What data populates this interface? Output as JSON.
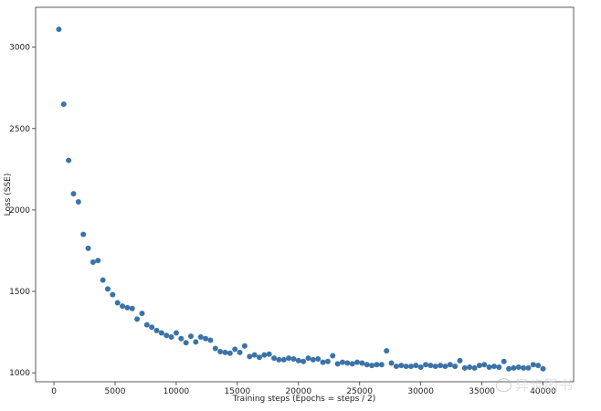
{
  "chart_data": {
    "type": "scatter",
    "title": "",
    "xlabel": "Training steps (Epochs = steps / 2)",
    "ylabel": "Loss (SSE)",
    "xlim": [
      -1500,
      42500
    ],
    "ylim": [
      945,
      3245
    ],
    "xticks": [
      0,
      5000,
      10000,
      15000,
      20000,
      25000,
      30000,
      35000,
      40000
    ],
    "xtick_labels": [
      "0",
      "5000",
      "10000",
      "15000",
      "20000",
      "25000",
      "30000",
      "35000",
      "40000"
    ],
    "yticks": [
      1000,
      1500,
      2000,
      2500,
      3000
    ],
    "ytick_labels": [
      "1000",
      "1500",
      "2000",
      "2500",
      "3000"
    ],
    "grid": false,
    "marker_color": "#3b73a8",
    "x": [
      400,
      800,
      1200,
      1600,
      2000,
      2400,
      2800,
      3200,
      3600,
      4000,
      4400,
      4800,
      5200,
      5600,
      6000,
      6400,
      6800,
      7200,
      7600,
      8000,
      8400,
      8800,
      9200,
      9600,
      10000,
      10400,
      10800,
      11200,
      11600,
      12000,
      12400,
      12800,
      13200,
      13600,
      14000,
      14400,
      14800,
      15200,
      15600,
      16000,
      16400,
      16800,
      17200,
      17600,
      18000,
      18400,
      18800,
      19200,
      19600,
      20000,
      20400,
      20800,
      21200,
      21600,
      22000,
      22400,
      22800,
      23200,
      23600,
      24000,
      24400,
      24800,
      25200,
      25600,
      26000,
      26400,
      26800,
      27200,
      27600,
      28000,
      28400,
      28800,
      29200,
      29600,
      30000,
      30400,
      30800,
      31200,
      31600,
      32000,
      32400,
      32800,
      33200,
      33600,
      34000,
      34400,
      34800,
      35200,
      35600,
      36000,
      36400,
      36800,
      37200,
      37600,
      38000,
      38400,
      38800,
      39200,
      39600,
      40000
    ],
    "y": [
      3110,
      2650,
      2305,
      2100,
      2050,
      1850,
      1765,
      1680,
      1690,
      1570,
      1515,
      1480,
      1430,
      1410,
      1400,
      1395,
      1330,
      1365,
      1295,
      1280,
      1260,
      1245,
      1230,
      1220,
      1245,
      1210,
      1185,
      1225,
      1190,
      1220,
      1210,
      1200,
      1150,
      1130,
      1125,
      1120,
      1145,
      1125,
      1165,
      1100,
      1110,
      1095,
      1110,
      1115,
      1090,
      1080,
      1080,
      1090,
      1085,
      1075,
      1070,
      1090,
      1080,
      1085,
      1065,
      1070,
      1105,
      1055,
      1065,
      1060,
      1055,
      1065,
      1060,
      1050,
      1045,
      1050,
      1050,
      1135,
      1060,
      1040,
      1045,
      1040,
      1040,
      1045,
      1035,
      1050,
      1045,
      1040,
      1045,
      1040,
      1050,
      1040,
      1075,
      1030,
      1035,
      1030,
      1045,
      1050,
      1035,
      1040,
      1035,
      1070,
      1025,
      1030,
      1035,
      1030,
      1030,
      1050,
      1045,
      1025
    ]
  },
  "watermark": {
    "text": "异步图书",
    "icon": "chat-bubble-icon"
  }
}
